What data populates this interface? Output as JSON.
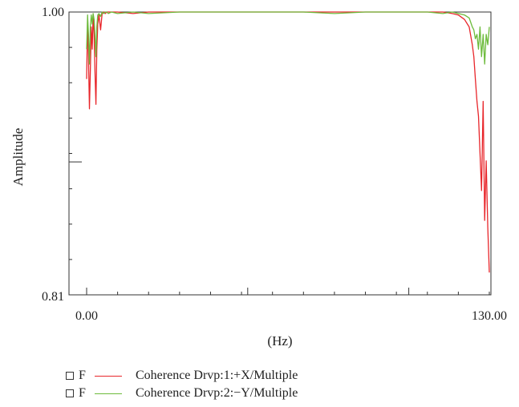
{
  "chart_data": {
    "type": "line",
    "title": "",
    "xlabel": "(Hz)",
    "ylabel": "Amplitude",
    "xlim": [
      0.0,
      130.0
    ],
    "ylim": [
      0.81,
      1.0
    ],
    "x_tick_labels": [
      "0.00",
      "130.00"
    ],
    "y_tick_labels": [
      "1.00",
      "0.81"
    ],
    "grid": false,
    "legend_position": "bottom-left",
    "series": [
      {
        "name": "Coherence Drvp:1:+X/Multiple",
        "marker": "F",
        "color": "#e8262b",
        "x": [
          0.0,
          0.3,
          0.6,
          0.9,
          1.2,
          1.5,
          1.8,
          2.1,
          2.4,
          2.7,
          3.0,
          3.3,
          3.6,
          4.0,
          4.5,
          5.0,
          5.5,
          6.0,
          6.5,
          7.0,
          8.0,
          10.0,
          15.0,
          20.0,
          30.0,
          40.0,
          50.0,
          60.0,
          70.0,
          80.0,
          90.0,
          100.0,
          110.0,
          115.0,
          118.0,
          120.0,
          122.0,
          123.5,
          124.5,
          125.0,
          125.5,
          126.0,
          126.5,
          127.0,
          127.5,
          128.0,
          128.5,
          129.0,
          129.5,
          130.0
        ],
        "values": [
          0.955,
          0.995,
          0.97,
          0.935,
          0.96,
          0.99,
          0.975,
          0.998,
          0.985,
          0.96,
          0.938,
          0.975,
          0.992,
          0.998,
          0.988,
          0.999,
          1.0,
          0.999,
          1.0,
          1.0,
          1.0,
          1.0,
          0.999,
          1.0,
          1.0,
          1.0,
          1.0,
          1.0,
          1.0,
          1.0,
          1.0,
          1.0,
          1.0,
          1.0,
          0.999,
          0.998,
          0.995,
          0.99,
          0.978,
          0.97,
          0.955,
          0.94,
          0.93,
          0.905,
          0.88,
          0.94,
          0.86,
          0.9,
          0.855,
          0.825
        ]
      },
      {
        "name": "Coherence Drvp:2:−Y/Multiple",
        "marker": "F",
        "color": "#6dbb3c",
        "x": [
          0.0,
          0.3,
          0.6,
          0.9,
          1.2,
          1.5,
          1.8,
          2.1,
          2.4,
          2.7,
          3.0,
          3.3,
          3.6,
          4.0,
          4.5,
          5.0,
          5.5,
          6.0,
          6.5,
          7.0,
          8.0,
          10.0,
          15.0,
          20.0,
          30.0,
          40.0,
          50.0,
          60.0,
          70.0,
          80.0,
          90.0,
          100.0,
          110.0,
          115.0,
          118.0,
          120.0,
          122.0,
          123.5,
          124.5,
          125.0,
          125.5,
          126.0,
          126.5,
          127.0,
          127.5,
          128.0,
          128.5,
          129.0,
          129.5,
          130.0
        ],
        "values": [
          0.975,
          0.998,
          0.985,
          0.965,
          0.99,
          0.998,
          0.992,
          0.999,
          0.995,
          0.985,
          0.97,
          0.99,
          0.998,
          0.999,
          0.997,
          1.0,
          0.999,
          1.0,
          1.0,
          0.999,
          1.0,
          0.999,
          1.0,
          0.999,
          1.0,
          1.0,
          1.0,
          1.0,
          1.0,
          0.999,
          1.0,
          1.0,
          1.0,
          0.999,
          1.0,
          0.999,
          0.998,
          0.996,
          0.99,
          0.988,
          0.982,
          0.985,
          0.975,
          0.99,
          0.97,
          0.985,
          0.965,
          0.985,
          0.978,
          0.99
        ]
      }
    ]
  }
}
